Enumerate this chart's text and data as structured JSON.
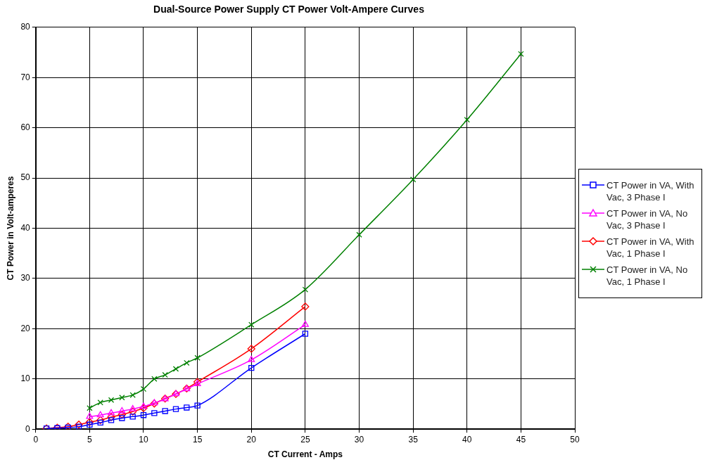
{
  "chart_data": {
    "type": "line",
    "title": "Dual-Source Power Supply CT Power Volt-Ampere Curves",
    "xlabel": "CT Current - Amps",
    "ylabel": "CT Power in Volt-amperes",
    "xlim": [
      0,
      50
    ],
    "xticks": [
      0,
      5,
      10,
      15,
      20,
      25,
      30,
      35,
      40,
      45,
      50
    ],
    "ylim": [
      0,
      80
    ],
    "yticks": [
      0,
      10,
      20,
      30,
      40,
      50,
      60,
      70,
      80
    ],
    "grid": true,
    "legend": "right",
    "line_style": "solid",
    "series": [
      {
        "name": "CT Power in VA, With Vac, 3 Phase I",
        "color": "#0000ff",
        "marker": "square",
        "x": [
          1,
          2,
          3,
          4,
          5,
          6,
          7,
          8,
          9,
          10,
          11,
          12,
          13,
          14,
          15,
          20,
          25
        ],
        "values": [
          0.15,
          0.2,
          0.3,
          0.5,
          0.9,
          1.3,
          1.8,
          2.2,
          2.5,
          2.8,
          3.2,
          3.6,
          4.0,
          4.3,
          4.7,
          12.2,
          19.0
        ]
      },
      {
        "name": "CT Power in VA, No Vac, 3 Phase I",
        "color": "#ff00ff",
        "marker": "triangle",
        "x": [
          5,
          6,
          7,
          8,
          9,
          10,
          11,
          12,
          13,
          14,
          15,
          20,
          25
        ],
        "values": [
          2.5,
          2.8,
          3.2,
          3.6,
          4.0,
          4.5,
          5.2,
          6.0,
          7.0,
          8.0,
          9.0,
          13.8,
          20.8
        ]
      },
      {
        "name": "CT Power in VA, With Vac, 1 Phase I",
        "color": "#ff0000",
        "marker": "diamond",
        "x": [
          1,
          2,
          3,
          4,
          5,
          6,
          7,
          8,
          9,
          10,
          11,
          12,
          13,
          14,
          15,
          20,
          25
        ],
        "values": [
          0.15,
          0.3,
          0.5,
          0.9,
          1.4,
          1.8,
          2.4,
          2.9,
          3.5,
          4.2,
          5.1,
          6.1,
          7.0,
          8.1,
          9.4,
          16.0,
          24.4
        ]
      },
      {
        "name": "CT Power in VA, No Vac, 1 Phase I",
        "color": "#008000",
        "marker": "cross",
        "x": [
          5,
          6,
          7,
          8,
          9,
          10,
          11,
          12,
          13,
          14,
          15,
          20,
          25,
          30,
          35,
          40,
          45
        ],
        "values": [
          4.2,
          5.3,
          5.8,
          6.3,
          6.8,
          8.0,
          10.0,
          10.8,
          12.0,
          13.2,
          14.2,
          20.8,
          27.8,
          38.7,
          49.7,
          61.6,
          74.7
        ]
      }
    ]
  }
}
